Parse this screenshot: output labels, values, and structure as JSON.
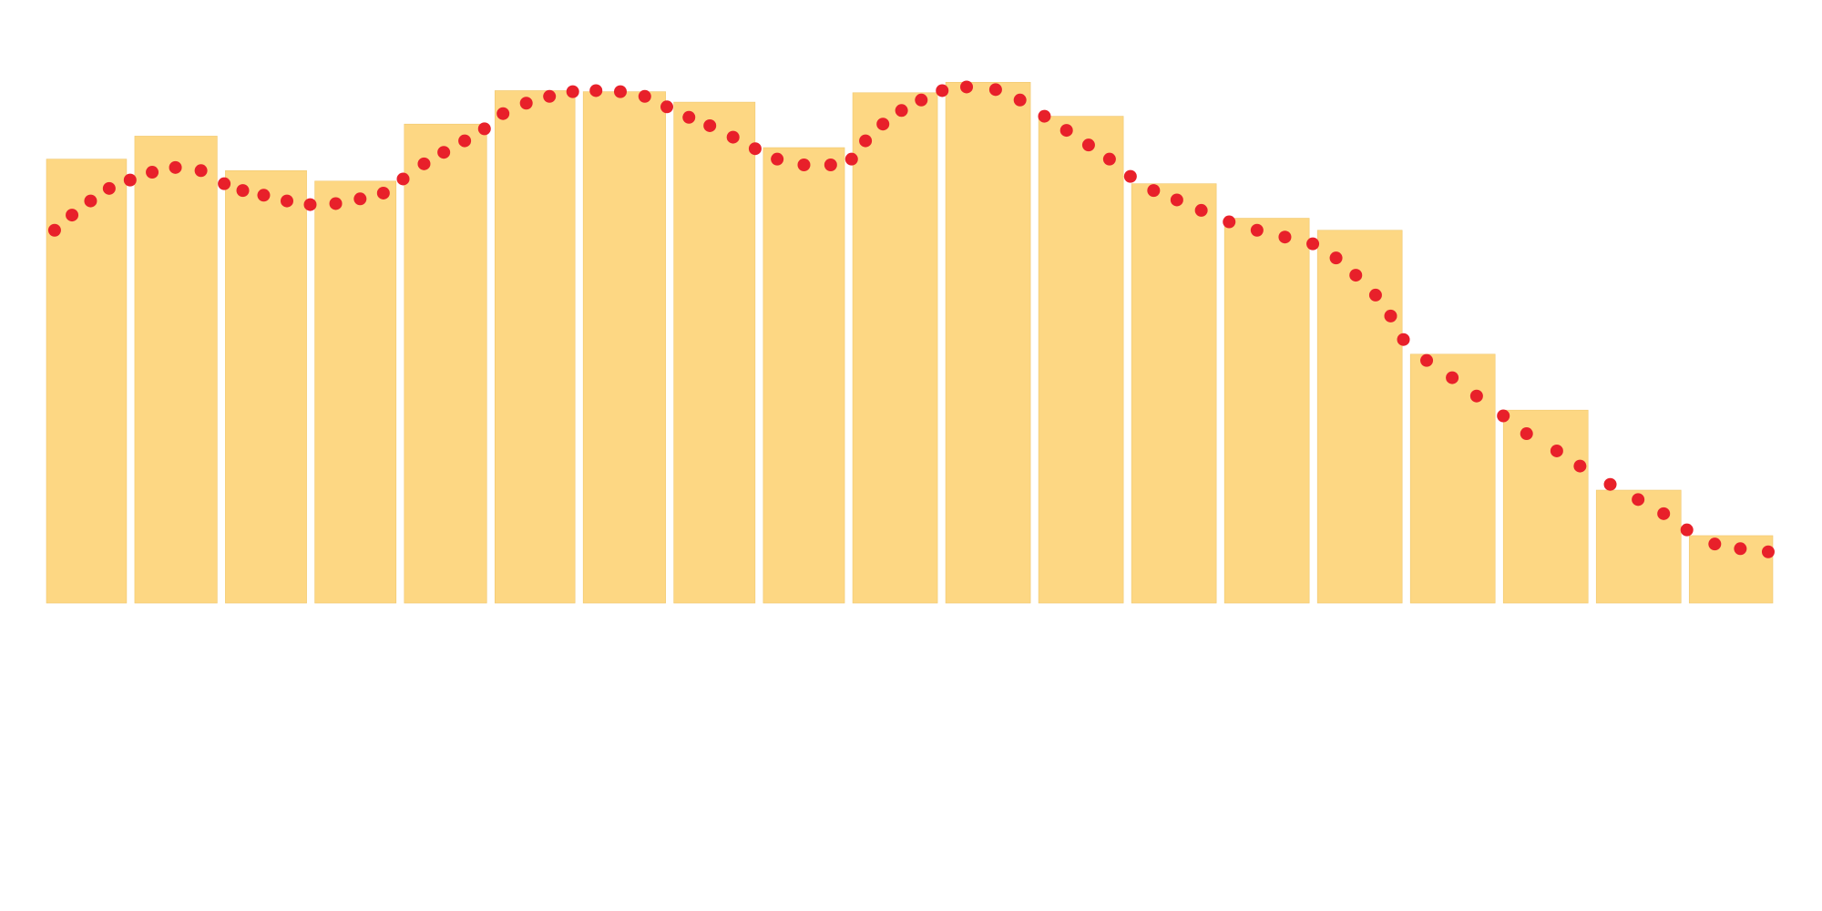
{
  "chart_data": [
    {
      "type": "histogram",
      "color": "#fdd783",
      "bins": [
        0,
        7.6,
        15.4,
        23.1,
        30.8,
        38.6,
        46.2,
        54,
        61.7,
        69.4,
        77.4,
        85.4,
        93.4,
        101.4,
        109.4,
        117.4,
        125.4,
        133.4,
        141.4,
        149.3
      ],
      "values": [
        84.9,
        89.3,
        82.7,
        80.7,
        91.6,
        98,
        97.8,
        95.8,
        87.1,
        97.6,
        99.6,
        93.1,
        80.2,
        73.6,
        71.3,
        47.6,
        36.9,
        21.6,
        12.9
      ],
      "xlim": [
        0,
        149.3
      ],
      "ylim": [
        0,
        100
      ]
    },
    {
      "type": "scatter",
      "color": "#e8202a",
      "x": [
        0.7,
        2.2,
        3.8,
        5.4,
        7.2,
        9.1,
        11.1,
        13.3,
        15.3,
        16.9,
        18.7,
        20.7,
        22.7,
        24.9,
        27.0,
        29.0,
        30.7,
        32.5,
        34.2,
        36.0,
        37.7,
        39.3,
        41.3,
        43.3,
        45.3,
        47.3,
        49.4,
        51.5,
        53.4,
        55.3,
        57.1,
        59.1,
        61.0,
        62.9,
        65.2,
        67.5,
        69.3,
        70.5,
        72.0,
        73.6,
        75.3,
        77.1,
        79.2,
        81.7,
        83.8,
        85.9,
        87.8,
        89.7,
        91.5,
        93.3,
        95.3,
        97.3,
        99.4,
        101.8,
        104.2,
        106.6,
        109.0,
        111.0,
        112.7,
        114.4,
        115.7,
        116.8,
        118.8,
        121.0,
        123.1,
        125.4,
        127.4,
        130.0,
        132.0,
        134.6,
        137.0,
        139.2,
        141.2,
        143.6,
        145.8,
        148.2
      ],
      "y": [
        71.3,
        74.2,
        76.9,
        79.3,
        80.9,
        82.4,
        83.3,
        82.7,
        80.2,
        78.9,
        78.0,
        76.9,
        76.2,
        76.4,
        77.3,
        78.4,
        81.1,
        84.0,
        86.2,
        88.4,
        90.7,
        93.6,
        95.6,
        96.9,
        97.8,
        98.0,
        97.8,
        96.9,
        94.9,
        92.9,
        91.3,
        89.1,
        86.9,
        84.9,
        83.8,
        83.8,
        84.9,
        88.4,
        91.6,
        94.2,
        96.2,
        98.0,
        98.7,
        98.2,
        96.2,
        93.1,
        90.4,
        87.6,
        84.9,
        81.6,
        78.9,
        77.1,
        75.1,
        72.9,
        71.3,
        70.0,
        68.7,
        66.0,
        62.7,
        58.9,
        54.9,
        50.4,
        46.4,
        43.1,
        39.6,
        35.8,
        32.4,
        29.1,
        26.2,
        22.7,
        19.8,
        17.1,
        14.0,
        11.3,
        10.4,
        9.8
      ],
      "xlim": [
        0,
        149.3
      ],
      "ylim": [
        0,
        100
      ]
    }
  ]
}
